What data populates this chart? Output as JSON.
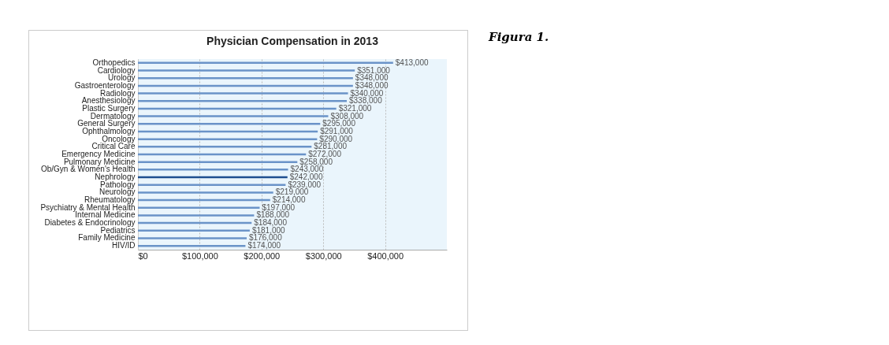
{
  "chart_data": {
    "type": "bar",
    "orientation": "horizontal",
    "title": "Physician Compensation in 2013",
    "categories": [
      "Orthopedics",
      "Cardiology",
      "Urology",
      "Gastroenterology",
      "Radiology",
      "Anesthesiology",
      "Plastic Surgery",
      "Dermatology",
      "General Surgery",
      "Ophthalmology",
      "Oncology",
      "Critical Care",
      "Emergency Medicine",
      "Pulmonary Medicine",
      "Ob/Gyn & Women's Health",
      "Nephrology",
      "Pathology",
      "Neurology",
      "Rheumatology",
      "Psychiatry & Mental Health",
      "Internal Medicine",
      "Diabetes & Endocrinology",
      "Pediatrics",
      "Family Medicine",
      "HIV/ID"
    ],
    "values": [
      413000,
      351000,
      348000,
      348000,
      340000,
      338000,
      321000,
      308000,
      295000,
      291000,
      290000,
      281000,
      272000,
      258000,
      243000,
      242000,
      239000,
      219000,
      214000,
      197000,
      188000,
      184000,
      181000,
      176000,
      174000
    ],
    "value_labels": [
      "$413,000",
      "$351,000",
      "$348,000",
      "$348,000",
      "$340,000",
      "$338,000",
      "$321,000",
      "$308,000",
      "$295,000",
      "$291,000",
      "$290,000",
      "$281,000",
      "$272,000",
      "$258,000",
      "$243,000",
      "$242,000",
      "$239,000",
      "$219,000",
      "$214,000",
      "$197,000",
      "$188,000",
      "$184,000",
      "$181,000",
      "$176,000",
      "$174,000"
    ],
    "colors": [
      "#6a93c8",
      "#6a93c8",
      "#6a93c8",
      "#6a93c8",
      "#6a93c8",
      "#6a93c8",
      "#6a93c8",
      "#6a93c8",
      "#6a93c8",
      "#6a93c8",
      "#6a93c8",
      "#6a93c8",
      "#6a93c8",
      "#6a93c8",
      "#6a93c8",
      "#1f4f8f",
      "#6a93c8",
      "#6a93c8",
      "#6a93c8",
      "#6a93c8",
      "#6a93c8",
      "#6a93c8",
      "#6a93c8",
      "#6a93c8",
      "#6a93c8"
    ],
    "xlim": [
      0,
      500000
    ],
    "xticks": [
      {
        "value": 0,
        "label": "$0"
      },
      {
        "value": 100000,
        "label": "$100,000"
      },
      {
        "value": 200000,
        "label": "$200,000"
      },
      {
        "value": 300000,
        "label": "$300,000"
      },
      {
        "value": 400000,
        "label": "$400,000"
      }
    ],
    "grid": "x",
    "annotations": [
      "Figura 1."
    ]
  }
}
